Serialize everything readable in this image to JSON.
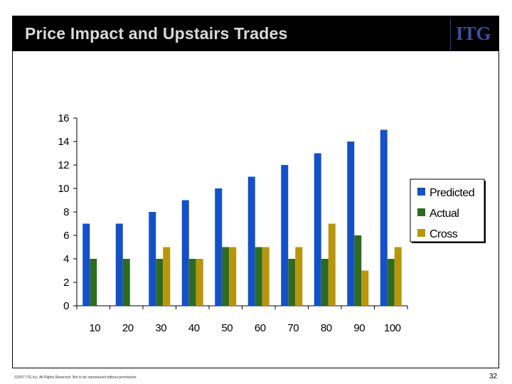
{
  "header": {
    "title": "Price Impact and Upstairs Trades",
    "logo": "ITG",
    "bar_color": "#000000",
    "title_color": "#d9d9d9",
    "logo_color": "#3c4fa8"
  },
  "footer": {
    "note": "©2007 ITG Inc. All Rights Reserved. Not to be reproduced without permission",
    "page_number": "32"
  },
  "chart_data": {
    "type": "bar",
    "title": "",
    "xlabel": "",
    "ylabel": "",
    "categories": [
      "10",
      "20",
      "30",
      "40",
      "50",
      "60",
      "70",
      "80",
      "90",
      "100"
    ],
    "ylim": [
      0,
      16
    ],
    "yticks": [
      0,
      2,
      4,
      6,
      8,
      10,
      12,
      14,
      16
    ],
    "grid": false,
    "legend_position": "right",
    "series": [
      {
        "name": "Predicted",
        "color": "#1450c8",
        "values": [
          7,
          7,
          8,
          9,
          10,
          11,
          12,
          13,
          14,
          15
        ]
      },
      {
        "name": "Actual",
        "color": "#2e6b22",
        "values": [
          4,
          4,
          4,
          4,
          5,
          5,
          4,
          4,
          6,
          4
        ]
      },
      {
        "name": "Cross",
        "color": "#b8960c",
        "values": [
          null,
          null,
          5,
          4,
          5,
          5,
          5,
          7,
          3,
          5
        ]
      }
    ]
  }
}
